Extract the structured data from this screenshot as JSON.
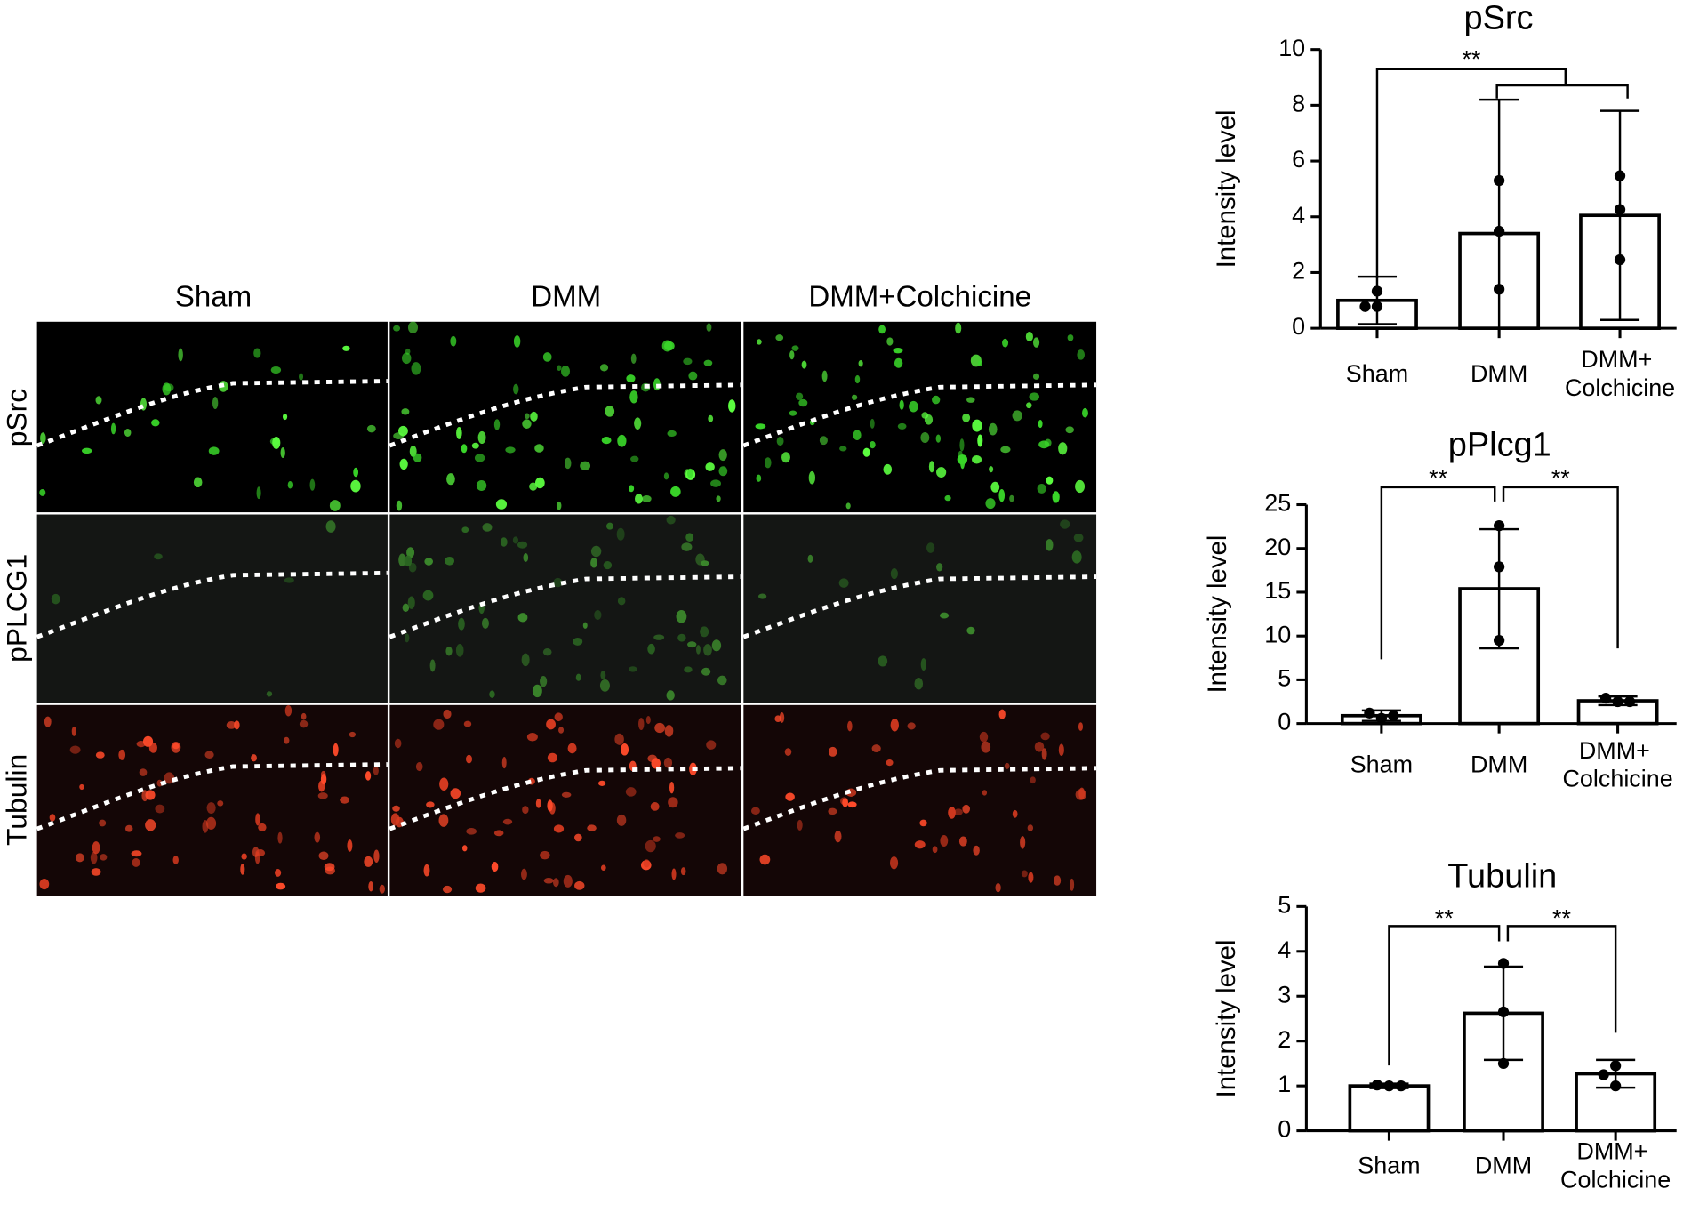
{
  "micrographs": {
    "columns": [
      "Sham",
      "DMM",
      "DMM+Colchicine"
    ],
    "rows": [
      "pSrc",
      "pPLCG1",
      "Tubulin"
    ]
  },
  "chart_data": [
    {
      "type": "bar",
      "title": "pSrc",
      "y_label": "Intensity level",
      "categories": [
        "Sham",
        "DMM",
        "DMM+\nColchicine"
      ],
      "values": [
        1.0,
        3.4,
        4.05
      ],
      "errors": [
        0.85,
        4.8,
        3.75
      ],
      "points": [
        [
          0.78,
          1.33,
          0.78
        ],
        [
          5.3,
          3.48,
          1.4
        ],
        [
          5.47,
          4.26,
          2.46
        ]
      ],
      "ylim": [
        0,
        10
      ],
      "yticks": [
        0,
        2,
        4,
        6,
        8,
        10
      ],
      "color": "#ffffff",
      "significance": [
        {
          "label": "**",
          "between": [
            "Sham",
            [
              "DMM",
              "DMM+\nColchicine"
            ]
          ]
        }
      ]
    },
    {
      "type": "bar",
      "title": "pPlcg1",
      "y_label": "Intensity level",
      "categories": [
        "Sham",
        "DMM",
        "DMM+\nColchicine"
      ],
      "values": [
        0.9,
        15.4,
        2.6
      ],
      "errors": [
        0.6,
        6.8,
        0.5
      ],
      "points": [
        [
          0.6,
          1.2,
          0.9
        ],
        [
          22.6,
          17.9,
          9.5
        ],
        [
          2.5,
          2.9,
          2.5
        ]
      ],
      "ylim": [
        0,
        25
      ],
      "yticks": [
        0,
        5,
        10,
        15,
        20,
        25
      ],
      "color": "#ffffff",
      "significance": [
        {
          "label": "**",
          "between": [
            "Sham",
            "DMM"
          ]
        },
        {
          "label": "**",
          "between": [
            "DMM",
            "DMM+\nColchicine"
          ]
        }
      ]
    },
    {
      "type": "bar",
      "title": "Tubulin",
      "y_label": "Intensity level",
      "categories": [
        "Sham",
        "DMM",
        "DMM+\nColchicine"
      ],
      "values": [
        1.0,
        2.62,
        1.27
      ],
      "errors": [
        0.05,
        1.04,
        0.31
      ],
      "points": [
        [
          1.0,
          1.02,
          1.0
        ],
        [
          3.73,
          2.65,
          1.5
        ],
        [
          1.45,
          1.25,
          1.0
        ]
      ],
      "ylim": [
        0,
        5
      ],
      "yticks": [
        0,
        1,
        2,
        3,
        4,
        5
      ],
      "color": "#ffffff",
      "significance": [
        {
          "label": "**",
          "between": [
            "Sham",
            "DMM"
          ]
        },
        {
          "label": "**",
          "between": [
            "DMM",
            "DMM+\nColchicine"
          ]
        }
      ]
    }
  ]
}
